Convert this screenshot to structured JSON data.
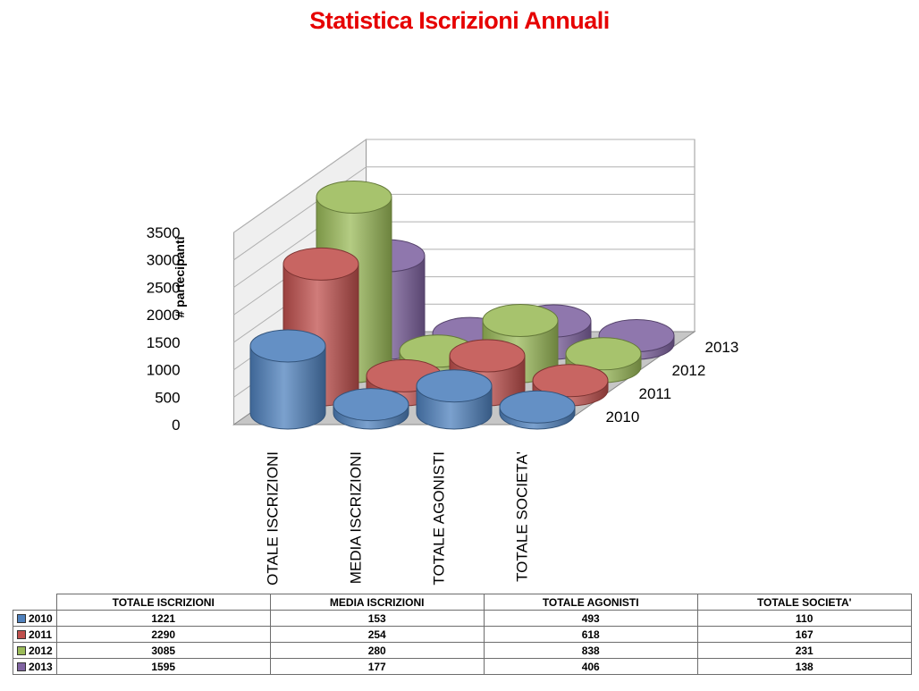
{
  "chart_data": {
    "type": "bar",
    "style": "3d-cylinder",
    "title": "Statistica Iscrizioni Annuali",
    "ylabel": "# partecipanti",
    "ylim": [
      0,
      3500
    ],
    "yticks": [
      0,
      500,
      1000,
      1500,
      2000,
      2500,
      3000,
      3500
    ],
    "grid": true,
    "categories": [
      "TOTALE ISCRIZIONI",
      "MEDIA ISCRIZIONI",
      "TOTALE AGONISTI",
      "TOTALE SOCIETA'"
    ],
    "series": [
      {
        "name": "2010",
        "color": "#4f81bd",
        "values": [
          1221,
          153,
          493,
          110
        ]
      },
      {
        "name": "2011",
        "color": "#c0504d",
        "values": [
          2290,
          254,
          618,
          167
        ]
      },
      {
        "name": "2012",
        "color": "#9bbb59",
        "values": [
          3085,
          280,
          838,
          231
        ]
      },
      {
        "name": "2013",
        "color": "#8064a2",
        "values": [
          1595,
          177,
          406,
          138
        ]
      }
    ]
  }
}
